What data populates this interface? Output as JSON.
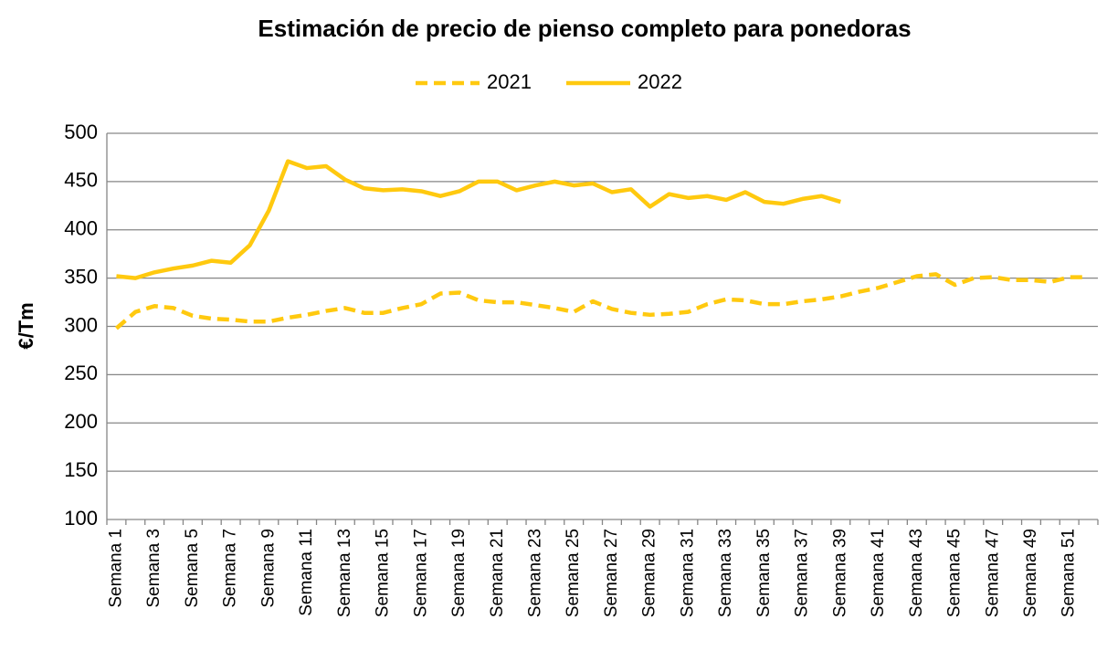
{
  "chart_data": {
    "type": "line",
    "title": "Estimación de precio de pienso completo para ponedoras",
    "y_label": "€/Tm",
    "categories": [
      "Semana 1",
      null,
      "Semana 3",
      null,
      "Semana 5",
      null,
      "Semana 7",
      null,
      "Semana 9",
      null,
      "Semana 11",
      null,
      "Semana 13",
      null,
      "Semana 15",
      null,
      "Semana 17",
      null,
      "Semana 19",
      null,
      "Semana 21",
      null,
      "Semana 23",
      null,
      "Semana 25",
      null,
      "Semana 27",
      null,
      "Semana 29",
      null,
      "Semana 31",
      null,
      "Semana 33",
      null,
      "Semana 35",
      null,
      "Semana 37",
      null,
      "Semana 39",
      null,
      "Semana 41",
      null,
      "Semana 43",
      null,
      "Semana 45",
      null,
      "Semana 47",
      null,
      "Semana 49",
      null,
      "Semana 51",
      null
    ],
    "series": [
      {
        "name": "2021",
        "color": "#ffc90f",
        "dashed": true,
        "values": [
          298,
          315,
          321,
          319,
          311,
          308,
          307,
          305,
          305,
          309,
          312,
          316,
          319,
          314,
          314,
          319,
          323,
          334,
          335,
          327,
          325,
          325,
          322,
          319,
          315,
          326,
          318,
          314,
          312,
          313,
          315,
          323,
          328,
          327,
          323,
          323,
          326,
          328,
          331,
          336,
          340,
          346,
          352,
          354,
          343,
          350,
          351,
          348,
          348,
          346,
          351,
          351
        ]
      },
      {
        "name": "2022",
        "color": "#ffc90f",
        "dashed": false,
        "values": [
          352,
          350,
          356,
          360,
          363,
          368,
          366,
          384,
          420,
          471,
          464,
          466,
          452,
          443,
          441,
          442,
          440,
          435,
          440,
          450,
          450,
          441,
          446,
          450,
          446,
          448,
          439,
          442,
          424,
          437,
          433,
          435,
          431,
          439,
          429,
          427,
          432,
          435,
          429,
          null,
          null,
          null,
          null,
          null,
          null,
          null,
          null,
          null,
          null,
          null,
          null,
          null
        ]
      }
    ],
    "ylim": [
      100,
      500
    ],
    "yticks": [
      100,
      150,
      200,
      250,
      300,
      350,
      400,
      450,
      500
    ],
    "grid": true,
    "legend": "top"
  }
}
